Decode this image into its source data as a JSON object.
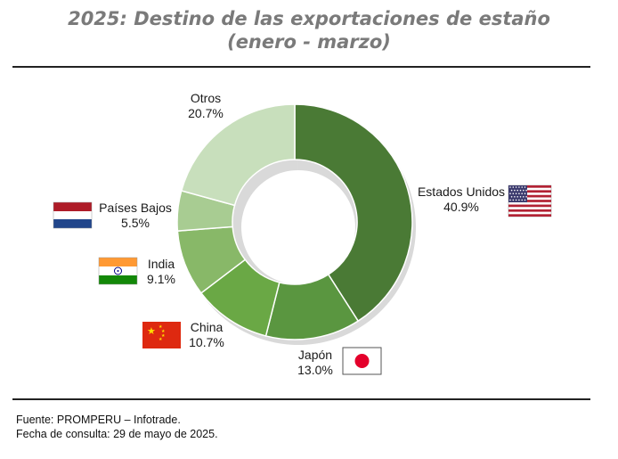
{
  "title": {
    "line1": "2025: Destino de las exportaciones de estaño",
    "line2": "(enero - marzo)"
  },
  "chart_data": {
    "type": "pie",
    "variant": "donut",
    "title": "2025: Destino de las exportaciones de estaño (enero - marzo)",
    "unit": "%",
    "slices": [
      {
        "name": "Estados Unidos",
        "value": 40.9,
        "label": "40.9%",
        "color": "#4a7a35",
        "flag": "usa-flag-icon"
      },
      {
        "name": "Japón",
        "value": 13.0,
        "label": "13.0%",
        "color": "#5a9640",
        "flag": "japan-flag-icon"
      },
      {
        "name": "China",
        "value": 10.7,
        "label": "10.7%",
        "color": "#6aa845",
        "flag": "china-flag-icon"
      },
      {
        "name": "India",
        "value": 9.1,
        "label": "9.1%",
        "color": "#88b868",
        "flag": "india-flag-icon"
      },
      {
        "name": "Países Bajos",
        "value": 5.5,
        "label": "5.5%",
        "color": "#a8cc92",
        "flag": "netherlands-flag-icon"
      },
      {
        "name": "Otros",
        "value": 20.7,
        "label": "20.7%",
        "color": "#c8dfbc",
        "flag": ""
      }
    ]
  },
  "footer": {
    "source": "Fuente: PROMPERU – Infotrade.",
    "date": "Fecha de consulta: 29 de mayo de 2025."
  }
}
